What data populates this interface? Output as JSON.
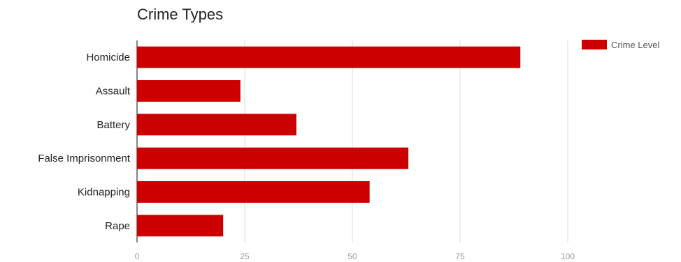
{
  "chart_data": {
    "type": "bar",
    "orientation": "horizontal",
    "title": "Crime Types",
    "categories": [
      "Homicide",
      "Assault",
      "Battery",
      "False Imprisonment",
      "Kidnapping",
      "Rape"
    ],
    "series": [
      {
        "name": "Crime Level",
        "values": [
          89,
          24,
          37,
          63,
          54,
          20
        ],
        "color": "#cc0000"
      }
    ],
    "xlim": [
      0,
      100
    ],
    "xticks": [
      0,
      25,
      50,
      75,
      100
    ],
    "grid": true,
    "legend_position": "top-right"
  }
}
